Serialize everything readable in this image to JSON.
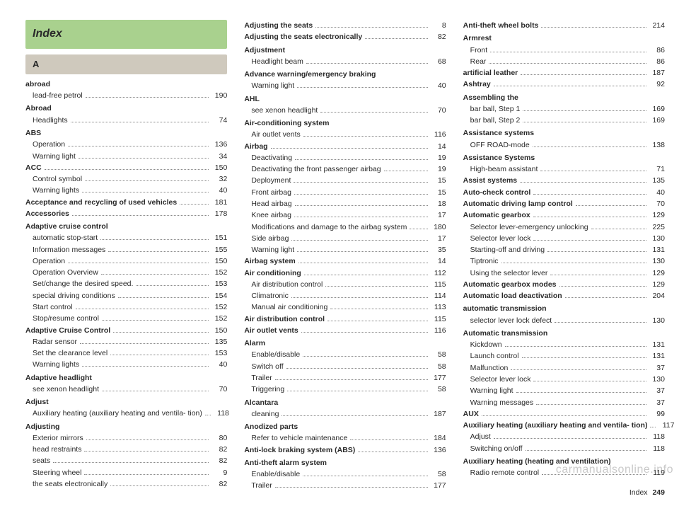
{
  "header": {
    "title": "Index",
    "letter": "A"
  },
  "footer": {
    "label": "Index",
    "page": "249"
  },
  "watermark": "carmanualsonline.info",
  "columns": [
    [
      {
        "type": "group",
        "label": "abroad"
      },
      {
        "type": "sub",
        "label": "lead-free petrol",
        "page": "190"
      },
      {
        "type": "group",
        "label": "Abroad"
      },
      {
        "type": "sub",
        "label": "Headlights",
        "page": "74"
      },
      {
        "type": "group",
        "label": "ABS"
      },
      {
        "type": "sub",
        "label": "Operation",
        "page": "136"
      },
      {
        "type": "sub",
        "label": "Warning light",
        "page": "34"
      },
      {
        "type": "boldrow",
        "label": "ACC",
        "page": "150"
      },
      {
        "type": "sub",
        "label": "Control symbol",
        "page": "32"
      },
      {
        "type": "sub",
        "label": "Warning lights",
        "page": "40"
      },
      {
        "type": "boldrow",
        "label": "Acceptance and recycling of used vehicles",
        "page": "181"
      },
      {
        "type": "boldrow",
        "label": "Accessories",
        "page": "178"
      },
      {
        "type": "group",
        "label": "Adaptive cruise control"
      },
      {
        "type": "sub",
        "label": "automatic stop-start",
        "page": "151"
      },
      {
        "type": "sub",
        "label": "Information messages",
        "page": "155"
      },
      {
        "type": "sub",
        "label": "Operation",
        "page": "150"
      },
      {
        "type": "sub",
        "label": "Operation Overview",
        "page": "152"
      },
      {
        "type": "sub",
        "label": "Set/change the desired speed.",
        "page": "153"
      },
      {
        "type": "sub",
        "label": "special driving conditions",
        "page": "154"
      },
      {
        "type": "sub",
        "label": "Start control",
        "page": "152"
      },
      {
        "type": "sub",
        "label": "Stop/resume control",
        "page": "152"
      },
      {
        "type": "boldrow",
        "label": "Adaptive Cruise Control",
        "page": "150"
      },
      {
        "type": "sub",
        "label": "Radar sensor",
        "page": "135"
      },
      {
        "type": "sub",
        "label": "Set the clearance level",
        "page": "153"
      },
      {
        "type": "sub",
        "label": "Warning lights",
        "page": "40"
      },
      {
        "type": "group",
        "label": "Adaptive headlight"
      },
      {
        "type": "sub",
        "label": "see xenon headlight",
        "page": "70"
      },
      {
        "type": "group",
        "label": "Adjust"
      },
      {
        "type": "sub",
        "label": "Auxiliary heating (auxiliary heating and ventila-\n        tion)",
        "page": "118"
      },
      {
        "type": "group",
        "label": "Adjusting"
      },
      {
        "type": "sub",
        "label": "Exterior mirrors",
        "page": "80"
      },
      {
        "type": "sub",
        "label": "head restraints",
        "page": "82"
      },
      {
        "type": "sub",
        "label": "seats",
        "page": "82"
      },
      {
        "type": "sub",
        "label": "Steering wheel",
        "page": "9"
      },
      {
        "type": "sub",
        "label": "the seats electronically",
        "page": "82"
      }
    ],
    [
      {
        "type": "boldrow",
        "label": "Adjusting the seats",
        "page": "8"
      },
      {
        "type": "boldrow",
        "label": "Adjusting the seats electronically",
        "page": "82"
      },
      {
        "type": "group",
        "label": "Adjustment"
      },
      {
        "type": "sub",
        "label": "Headlight beam",
        "page": "68"
      },
      {
        "type": "group",
        "label": "Advance warning/emergency braking"
      },
      {
        "type": "sub",
        "label": "Warning light",
        "page": "40"
      },
      {
        "type": "group",
        "label": "AHL"
      },
      {
        "type": "sub",
        "label": "see xenon headlight",
        "page": "70"
      },
      {
        "type": "group",
        "label": "Air-conditioning system"
      },
      {
        "type": "sub",
        "label": "Air outlet vents",
        "page": "116"
      },
      {
        "type": "boldrow",
        "label": "Airbag",
        "page": "14"
      },
      {
        "type": "sub",
        "label": "Deactivating",
        "page": "19"
      },
      {
        "type": "sub",
        "label": "Deactivating the front passenger airbag",
        "page": "19"
      },
      {
        "type": "sub",
        "label": "Deployment",
        "page": "15"
      },
      {
        "type": "sub",
        "label": "Front airbag",
        "page": "15"
      },
      {
        "type": "sub",
        "label": "Head airbag",
        "page": "18"
      },
      {
        "type": "sub",
        "label": "Knee airbag",
        "page": "17"
      },
      {
        "type": "sub",
        "label": "Modifications and damage to the airbag system",
        "page": "180"
      },
      {
        "type": "sub",
        "label": "Side airbag",
        "page": "17"
      },
      {
        "type": "sub",
        "label": "Warning light",
        "page": "35"
      },
      {
        "type": "boldrow",
        "label": "Airbag system",
        "page": "14"
      },
      {
        "type": "boldrow",
        "label": "Air conditioning",
        "page": "112"
      },
      {
        "type": "sub",
        "label": "Air distribution control",
        "page": "115"
      },
      {
        "type": "sub",
        "label": "Climatronic",
        "page": "114"
      },
      {
        "type": "sub",
        "label": "Manual air conditioning",
        "page": "113"
      },
      {
        "type": "boldrow",
        "label": "Air distribution control",
        "page": "115"
      },
      {
        "type": "boldrow",
        "label": "Air outlet vents",
        "page": "116"
      },
      {
        "type": "group",
        "label": "Alarm"
      },
      {
        "type": "sub",
        "label": "Enable/disable",
        "page": "58"
      },
      {
        "type": "sub",
        "label": "Switch off",
        "page": "58"
      },
      {
        "type": "sub",
        "label": "Trailer",
        "page": "177"
      },
      {
        "type": "sub",
        "label": "Triggering",
        "page": "58"
      },
      {
        "type": "group",
        "label": "Alcantara"
      },
      {
        "type": "sub",
        "label": "cleaning",
        "page": "187"
      },
      {
        "type": "group",
        "label": "Anodized parts"
      },
      {
        "type": "sub",
        "label": "Refer to vehicle maintenance",
        "page": "184"
      },
      {
        "type": "boldrow",
        "label": "Anti-lock braking system (ABS)",
        "page": "136"
      },
      {
        "type": "group",
        "label": "Anti-theft alarm system"
      },
      {
        "type": "sub",
        "label": "Enable/disable",
        "page": "58"
      },
      {
        "type": "sub",
        "label": "Trailer",
        "page": "177"
      }
    ],
    [
      {
        "type": "boldrow",
        "label": "Anti-theft wheel bolts",
        "page": "214"
      },
      {
        "type": "group",
        "label": "Armrest"
      },
      {
        "type": "sub",
        "label": "Front",
        "page": "86"
      },
      {
        "type": "sub",
        "label": "Rear",
        "page": "86"
      },
      {
        "type": "boldrow",
        "label": "artificial leather",
        "page": "187"
      },
      {
        "type": "boldrow",
        "label": "Ashtray",
        "page": "92"
      },
      {
        "type": "group",
        "label": "Assembling the"
      },
      {
        "type": "sub",
        "label": "bar ball, Step 1",
        "page": "169"
      },
      {
        "type": "sub",
        "label": "bar ball, Step 2",
        "page": "169"
      },
      {
        "type": "group",
        "label": "Assistance systems"
      },
      {
        "type": "sub",
        "label": "OFF ROAD-mode",
        "page": "138"
      },
      {
        "type": "group",
        "label": "Assistance Systems"
      },
      {
        "type": "sub",
        "label": "High-beam assistant",
        "page": "71"
      },
      {
        "type": "boldrow",
        "label": "Assist systems",
        "page": "135"
      },
      {
        "type": "boldrow",
        "label": "Auto-check control",
        "page": "40"
      },
      {
        "type": "boldrow",
        "label": "Automatic driving lamp control",
        "page": "70"
      },
      {
        "type": "boldrow",
        "label": "Automatic gearbox",
        "page": "129"
      },
      {
        "type": "sub",
        "label": "Selector lever-emergency unlocking",
        "page": "225"
      },
      {
        "type": "sub",
        "label": "Selector lever lock",
        "page": "130"
      },
      {
        "type": "sub",
        "label": "Starting-off and driving",
        "page": "131"
      },
      {
        "type": "sub",
        "label": "Tiptronic",
        "page": "130"
      },
      {
        "type": "sub",
        "label": "Using the selector lever",
        "page": "129"
      },
      {
        "type": "boldrow",
        "label": "Automatic gearbox modes",
        "page": "129"
      },
      {
        "type": "boldrow",
        "label": "Automatic load deactivation",
        "page": "204"
      },
      {
        "type": "group",
        "label": "automatic transmission"
      },
      {
        "type": "sub",
        "label": "selector lever lock defect",
        "page": "130"
      },
      {
        "type": "group",
        "label": "Automatic transmission"
      },
      {
        "type": "sub",
        "label": "Kickdown",
        "page": "131"
      },
      {
        "type": "sub",
        "label": "Launch control",
        "page": "131"
      },
      {
        "type": "sub",
        "label": "Malfunction",
        "page": "37"
      },
      {
        "type": "sub",
        "label": "Selector lever lock",
        "page": "130"
      },
      {
        "type": "sub",
        "label": "Warning light",
        "page": "37"
      },
      {
        "type": "sub",
        "label": "Warning messages",
        "page": "37"
      },
      {
        "type": "boldrow",
        "label": "AUX",
        "page": "99"
      },
      {
        "type": "boldrow",
        "label": "Auxiliary heating (auxiliary heating and ventila-\n  tion)",
        "page": "117"
      },
      {
        "type": "sub",
        "label": "Adjust",
        "page": "118"
      },
      {
        "type": "sub",
        "label": "Switching on/off",
        "page": "118"
      },
      {
        "type": "group",
        "label": "Auxiliary heating (heating and ventilation)"
      },
      {
        "type": "sub",
        "label": "Radio remote control",
        "page": "119"
      }
    ]
  ]
}
